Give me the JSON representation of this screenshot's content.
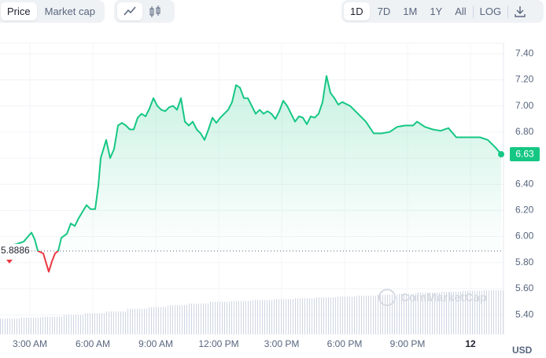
{
  "toolbar": {
    "metrics": [
      "Price",
      "Market cap"
    ],
    "ranges": [
      "1D",
      "7D",
      "1M",
      "1Y",
      "All"
    ],
    "log": "LOG"
  },
  "chart_data": {
    "type": "line",
    "currency_label": "USD",
    "watermark": "CoinMarketCap",
    "color_up": "#16c784",
    "color_down": "#ea3943",
    "reference_line": 5.8886,
    "grid": true,
    "xlim": [
      1.575,
      25.575
    ],
    "ylim": [
      5.25,
      7.48
    ],
    "xticks": [
      {
        "value": 3,
        "label": "3:00 AM"
      },
      {
        "value": 6,
        "label": "6:00 AM"
      },
      {
        "value": 9,
        "label": "9:00 AM"
      },
      {
        "value": 12,
        "label": "12:00 PM"
      },
      {
        "value": 15,
        "label": "3:00 PM"
      },
      {
        "value": 18,
        "label": "6:00 PM"
      },
      {
        "value": 21,
        "label": "9:00 PM"
      },
      {
        "value": 24,
        "label": "12"
      }
    ],
    "yticks": [
      {
        "value": 5.4,
        "label": "5.40"
      },
      {
        "value": 5.6,
        "label": "5.60"
      },
      {
        "value": 5.8,
        "label": "5.80"
      },
      {
        "value": 6.0,
        "label": "6.00"
      },
      {
        "value": 6.2,
        "label": "6.20"
      },
      {
        "value": 6.4,
        "label": "6.40"
      },
      {
        "value": 6.6,
        "label": "6.60"
      },
      {
        "value": 6.8,
        "label": "6.80"
      },
      {
        "value": 7.0,
        "label": "7.00"
      },
      {
        "value": 7.2,
        "label": "7.20"
      },
      {
        "value": 7.4,
        "label": "7.40"
      }
    ],
    "x": [
      1.575,
      1.95,
      2.325,
      2.7,
      3.075,
      3.225,
      3.375,
      3.638,
      3.9,
      4.05,
      4.2,
      4.35,
      4.5,
      4.763,
      4.95,
      5.138,
      5.325,
      5.513,
      5.7,
      5.888,
      6.113,
      6.263,
      6.375,
      6.638,
      6.825,
      7.013,
      7.2,
      7.388,
      7.575,
      7.763,
      7.95,
      8.138,
      8.325,
      8.513,
      8.7,
      8.888,
      9.075,
      9.263,
      9.45,
      9.638,
      9.825,
      10.013,
      10.2,
      10.388,
      10.575,
      10.763,
      10.95,
      11.138,
      11.325,
      11.513,
      11.7,
      11.888,
      12.075,
      12.263,
      12.45,
      12.638,
      12.825,
      13.013,
      13.2,
      13.388,
      13.575,
      13.763,
      13.95,
      14.138,
      14.325,
      14.513,
      14.7,
      14.888,
      15.075,
      15.263,
      15.45,
      15.638,
      15.825,
      16.013,
      16.2,
      16.388,
      16.575,
      16.763,
      16.95,
      17.138,
      17.325,
      17.513,
      17.7,
      17.888,
      18.263,
      18.638,
      19.013,
      19.388,
      19.763,
      20.138,
      20.513,
      20.888,
      21.263,
      21.45,
      21.825,
      22.2,
      22.575,
      22.95,
      23.325,
      23.7,
      24.075,
      24.45,
      24.825,
      25.2,
      25.463
    ],
    "values": [
      5.9,
      5.93,
      5.94,
      5.96,
      6.03,
      5.98,
      5.89,
      5.87,
      5.73,
      5.81,
      5.87,
      5.89,
      5.99,
      6.02,
      6.1,
      6.08,
      6.14,
      6.19,
      6.24,
      6.21,
      6.21,
      6.39,
      6.6,
      6.74,
      6.6,
      6.67,
      6.85,
      6.87,
      6.85,
      6.82,
      6.82,
      6.91,
      6.94,
      6.92,
      6.98,
      7.06,
      7.0,
      6.97,
      6.96,
      6.99,
      7.0,
      6.97,
      7.06,
      6.88,
      6.85,
      6.88,
      6.82,
      6.79,
      6.74,
      6.82,
      6.91,
      6.87,
      6.91,
      6.94,
      6.97,
      7.03,
      7.16,
      7.14,
      7.06,
      7.06,
      7.0,
      6.94,
      6.97,
      6.94,
      6.96,
      6.94,
      6.9,
      6.96,
      7.04,
      7.0,
      6.94,
      6.88,
      6.92,
      6.91,
      6.86,
      6.92,
      6.91,
      6.94,
      7.03,
      7.23,
      7.1,
      7.06,
      7.01,
      7.03,
      7.0,
      6.94,
      6.88,
      6.79,
      6.79,
      6.8,
      6.84,
      6.85,
      6.85,
      6.88,
      6.84,
      6.82,
      6.81,
      6.83,
      6.76,
      6.76,
      6.76,
      6.76,
      6.74,
      6.68,
      6.63
    ],
    "volume": {
      "values": [
        36,
        38,
        40,
        44,
        48,
        52,
        58,
        62,
        66,
        70,
        74,
        76,
        78,
        80,
        82,
        84,
        86,
        88,
        90,
        92,
        95,
        97,
        99,
        100
      ]
    }
  }
}
